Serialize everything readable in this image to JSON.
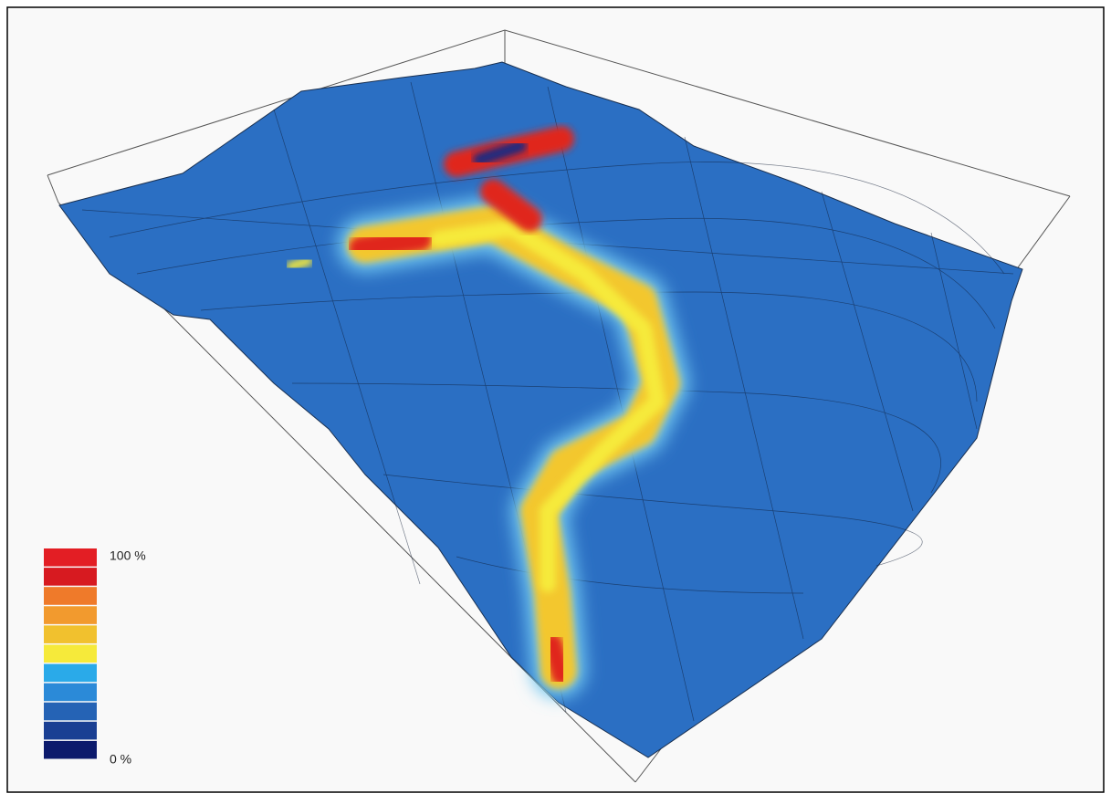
{
  "legend": {
    "top_label": "100 %",
    "bottom_label": "0 %",
    "colors": [
      "#e31e24",
      "#d71a20",
      "#ef7a2a",
      "#f29a2e",
      "#f1c12e",
      "#f6ea3a",
      "#2aaae9",
      "#2b8ad8",
      "#2563b5",
      "#1a3f93",
      "#0c1a6c"
    ]
  }
}
